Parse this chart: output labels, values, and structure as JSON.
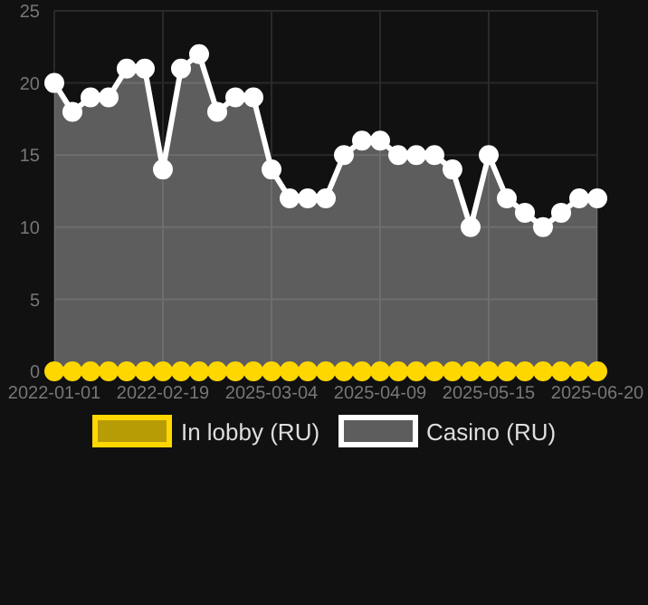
{
  "chart_data": {
    "type": "area",
    "categories": [
      "2022-01-01",
      null,
      null,
      null,
      null,
      null,
      "2022-02-19",
      null,
      null,
      null,
      null,
      null,
      "2025-03-04",
      null,
      null,
      null,
      null,
      null,
      "2025-04-09",
      null,
      null,
      null,
      null,
      null,
      "2025-05-15",
      null,
      null,
      null,
      null,
      null,
      "2025-06-20"
    ],
    "series": [
      {
        "name": "In lobby (RU)",
        "type": "line",
        "color": "#ffd700",
        "values": [
          0,
          0,
          0,
          0,
          0,
          0,
          0,
          0,
          0,
          0,
          0,
          0,
          0,
          0,
          0,
          0,
          0,
          0,
          0,
          0,
          0,
          0,
          0,
          0,
          0,
          0,
          0,
          0,
          0,
          0,
          0
        ]
      },
      {
        "name": "Casino (RU)",
        "color": "#ffffff",
        "values": [
          20,
          18,
          19,
          19,
          21,
          21,
          14,
          21,
          22,
          18,
          19,
          19,
          14,
          12,
          12,
          12,
          15,
          16,
          16,
          15,
          15,
          15,
          14,
          10,
          15,
          12,
          11,
          10,
          11,
          12,
          12
        ]
      }
    ],
    "ylim": [
      0,
      25
    ],
    "yticks": [
      0,
      5,
      10,
      15,
      20,
      25
    ],
    "grid": true,
    "legend": "bottom",
    "marker": "circle"
  }
}
